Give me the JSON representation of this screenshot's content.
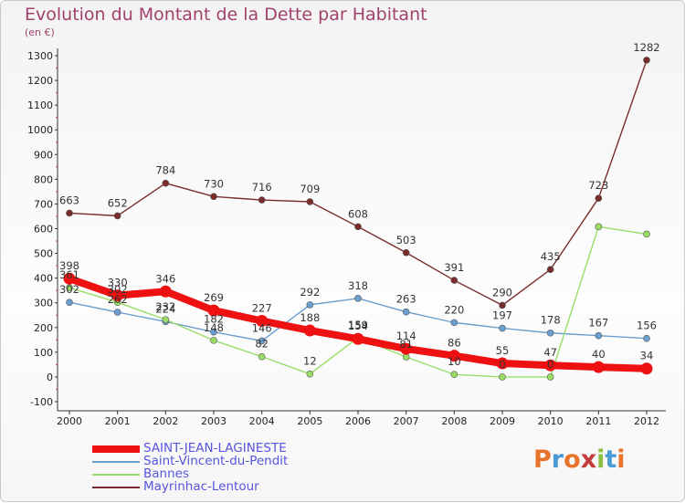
{
  "title": "Evolution du Montant de la Dette par Habitant",
  "subtitle": "(en €)",
  "logo": {
    "text": "Proxiti",
    "colors": [
      "#e8732a",
      "#4a9ad6",
      "#e8732a",
      "#c43c3c",
      "#8bbf3f",
      "#4a9ad6",
      "#e8732a"
    ]
  },
  "chart_data": {
    "type": "line",
    "x": [
      "2000",
      "2001",
      "2002",
      "2003",
      "2004",
      "2005",
      "2006",
      "2007",
      "2008",
      "2009",
      "2010",
      "2011",
      "2012"
    ],
    "ylim": [
      -100,
      1300
    ],
    "yticks": [
      -100,
      0,
      100,
      200,
      300,
      400,
      500,
      600,
      700,
      800,
      900,
      1000,
      1100,
      1200,
      1300
    ],
    "grid": false,
    "legend_position": "bottom-left",
    "series": [
      {
        "name": "SAINT-JEAN-LAGINESTE",
        "color": "#ee1111",
        "emphasis": true,
        "values": [
          398,
          330,
          346,
          269,
          227,
          188,
          154,
          114,
          86,
          55,
          47,
          40,
          34
        ]
      },
      {
        "name": "Saint-Vincent-du-Pendit",
        "color": "#6a9fcf",
        "values": [
          302,
          262,
          224,
          182,
          146,
          292,
          318,
          263,
          220,
          197,
          178,
          167,
          156
        ]
      },
      {
        "name": "Bannes",
        "color": "#99dd66",
        "values": [
          361,
          302,
          232,
          148,
          82,
          12,
          159,
          81,
          10,
          0,
          0,
          608,
          578
        ]
      },
      {
        "name": "Mayrinhac-Lentour",
        "color": "#7a2c2c",
        "values": [
          663,
          652,
          784,
          730,
          716,
          709,
          608,
          503,
          391,
          290,
          435,
          723,
          1282
        ]
      }
    ],
    "data_labels": [
      {
        "series": 0,
        "labels": [
          "398",
          "330",
          "346",
          "269",
          "227",
          "188",
          "154",
          "114",
          "86",
          "55",
          "47",
          "40",
          "34"
        ]
      },
      {
        "series": 1,
        "labels": [
          "302",
          "262",
          "224",
          "182",
          "146",
          "292",
          "318",
          "263",
          "220",
          "197",
          "178",
          "167",
          "156"
        ]
      },
      {
        "series": 2,
        "labels": [
          "361",
          "302",
          "232",
          "148",
          "82",
          "12",
          "159",
          "81",
          "10",
          "0",
          "0",
          "",
          ""
        ]
      },
      {
        "series": 3,
        "labels": [
          "663",
          "652",
          "784",
          "730",
          "716",
          "709",
          "608",
          "503",
          "391",
          "290",
          "435",
          "723",
          "1282"
        ]
      }
    ]
  }
}
